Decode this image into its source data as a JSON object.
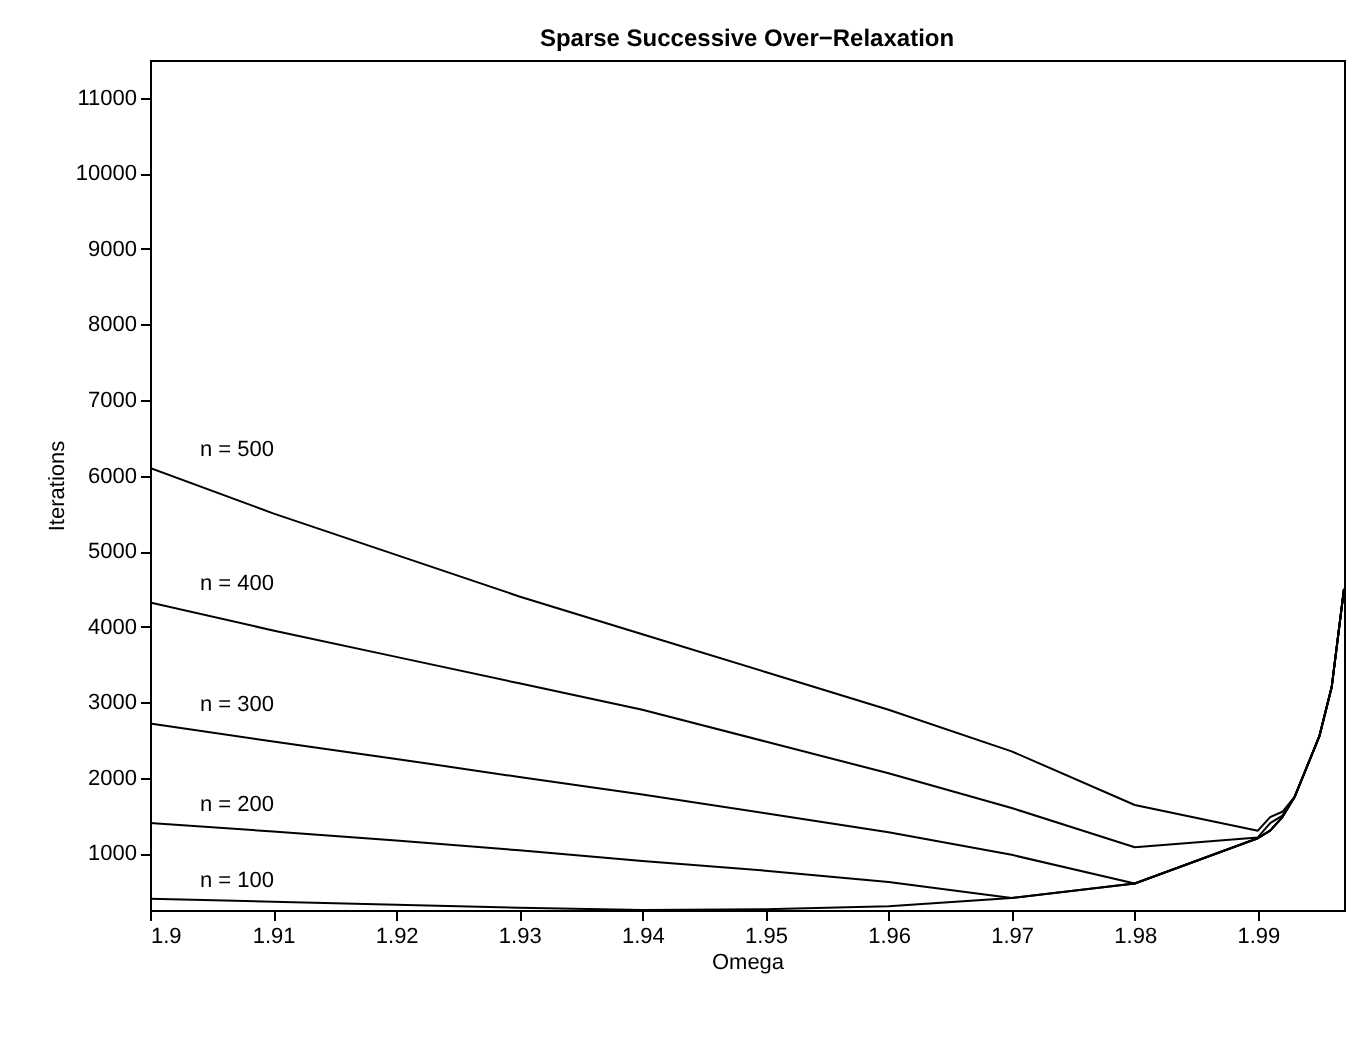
{
  "chart_data": {
    "type": "line",
    "title": "Sparse Successive Over−Relaxation",
    "xlabel": "Omega",
    "ylabel": "Iterations",
    "x": [
      1.9,
      1.91,
      1.92,
      1.93,
      1.94,
      1.95,
      1.96,
      1.97,
      1.98,
      1.99,
      1.991,
      1.992,
      1.993,
      1.994,
      1.995,
      1.996,
      1.997
    ],
    "series": [
      {
        "name": "n = 500",
        "color": "#000000",
        "values": [
          6100,
          5500,
          4950,
          4400,
          3900,
          3400,
          2900,
          2350,
          1640,
          1300,
          1480,
          1550,
          1750,
          2150,
          2550,
          3200,
          4500
        ]
      },
      {
        "name": "n = 400",
        "color": "#000000",
        "values": [
          4320,
          3950,
          3600,
          3250,
          2900,
          2480,
          2060,
          1600,
          1080,
          1210,
          1400,
          1500,
          1750,
          2150,
          2550,
          3200,
          4500
        ]
      },
      {
        "name": "n = 300",
        "color": "#000000",
        "values": [
          2720,
          2480,
          2250,
          2010,
          1780,
          1530,
          1280,
          980,
          600,
          1200,
          1300,
          1480,
          1750,
          2150,
          2550,
          3200,
          4500
        ]
      },
      {
        "name": "n = 200",
        "color": "#000000",
        "values": [
          1400,
          1290,
          1170,
          1040,
          900,
          770,
          620,
          410,
          600,
          1200,
          1300,
          1480,
          1750,
          2150,
          2550,
          3200,
          4500
        ]
      },
      {
        "name": "n = 100",
        "color": "#000000",
        "values": [
          400,
          360,
          320,
          280,
          250,
          260,
          300,
          410,
          600,
          1200,
          1300,
          1480,
          1750,
          2150,
          2550,
          3200,
          4500
        ]
      }
    ],
    "xlim": [
      1.9,
      1.997
    ],
    "xticks": [
      1.9,
      1.91,
      1.92,
      1.93,
      1.94,
      1.95,
      1.96,
      1.97,
      1.98,
      1.99
    ],
    "ylim": [
      250,
      11500
    ],
    "yticks": [
      1000,
      2000,
      3000,
      4000,
      5000,
      6000,
      7000,
      8000,
      9000,
      10000,
      11000
    ],
    "grid": false,
    "marker": "none",
    "line_style": "solid"
  }
}
